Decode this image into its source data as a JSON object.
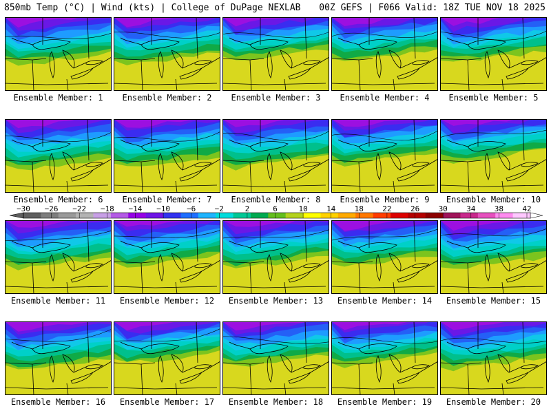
{
  "header": {
    "left": "850mb Temp (°C) | Wind (kts) | College of DuPage NEXLAB",
    "right": "00Z GEFS | F066 Valid: 18Z TUE NOV 18 2025"
  },
  "panels": [
    {
      "label": "Ensemble Member: 1",
      "warmth": 0.35
    },
    {
      "label": "Ensemble Member: 2",
      "warmth": 0.35
    },
    {
      "label": "Ensemble Member: 3",
      "warmth": 0.55
    },
    {
      "label": "Ensemble Member: 4",
      "warmth": 0.5
    },
    {
      "label": "Ensemble Member: 5",
      "warmth": 0.45
    },
    {
      "label": "Ensemble Member: 6",
      "warmth": 0.2
    },
    {
      "label": "Ensemble Member: 7",
      "warmth": 0.3
    },
    {
      "label": "Ensemble Member: 8",
      "warmth": 0.3
    },
    {
      "label": "Ensemble Member: 9",
      "warmth": 0.45
    },
    {
      "label": "Ensemble Member: 10",
      "warmth": 0.55
    },
    {
      "label": "Ensemble Member: 11",
      "warmth": 0.3
    },
    {
      "label": "Ensemble Member: 12",
      "warmth": 0.4
    },
    {
      "label": "Ensemble Member: 13",
      "warmth": 0.35
    },
    {
      "label": "Ensemble Member: 14",
      "warmth": 0.4
    },
    {
      "label": "Ensemble Member: 15",
      "warmth": 0.3
    },
    {
      "label": "Ensemble Member: 16",
      "warmth": 0.3
    },
    {
      "label": "Ensemble Member: 17",
      "warmth": 0.6
    },
    {
      "label": "Ensemble Member: 18",
      "warmth": 0.45
    },
    {
      "label": "Ensemble Member: 19",
      "warmth": 0.5
    },
    {
      "label": "Ensemble Member: 20",
      "warmth": 0.35
    }
  ],
  "colorbar": {
    "labels": [
      "-30",
      "-26",
      "-22",
      "-18",
      "-14",
      "-10",
      "-6",
      "-2",
      "2",
      "6",
      "10",
      "14",
      "18",
      "22",
      "26",
      "30",
      "34",
      "38",
      "42"
    ],
    "colors": [
      "#5e5e5e",
      "#7d7d7d",
      "#9a9a9a",
      "#b4b4b4",
      "#c8a0e6",
      "#b45ae6",
      "#9600e6",
      "#6e14e6",
      "#3232f0",
      "#1e6eff",
      "#1eb4ff",
      "#00dcdc",
      "#00c896",
      "#00aa50",
      "#64be1e",
      "#b4d21e",
      "#ffff00",
      "#ffd200",
      "#ffaa00",
      "#ff7800",
      "#ff3c00",
      "#dc0000",
      "#b40000",
      "#8c0000",
      "#a0145a",
      "#c8288c",
      "#e650be",
      "#ff8cf0",
      "#ffc8ff"
    ]
  }
}
